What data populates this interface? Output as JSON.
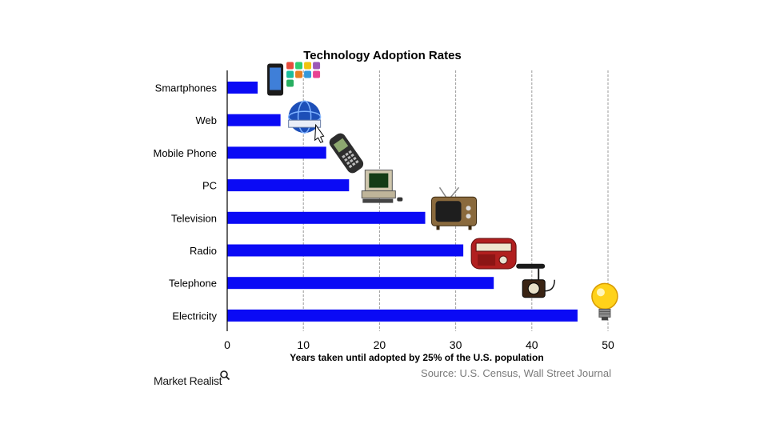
{
  "colors": {
    "bar": "#0a0af5",
    "grid": "#9a9a9a",
    "axis": "#000000",
    "source": "#7a7a7a"
  },
  "chart_data": {
    "type": "bar",
    "orientation": "horizontal",
    "title": "Technology Adoption Rates",
    "xlabel": "Years taken until adopted by 25% of the U.S. population",
    "ylabel": "",
    "categories": [
      "Smartphones",
      "Web",
      "Mobile Phone",
      "PC",
      "Television",
      "Radio",
      "Telephone",
      "Electricity"
    ],
    "values": [
      4,
      7,
      13,
      16,
      26,
      31,
      35,
      46
    ],
    "xlim": [
      0,
      50
    ],
    "xticks": [
      0,
      10,
      20,
      30,
      40,
      50
    ],
    "grid": "vertical dashed",
    "legend": "none"
  },
  "icons": [
    "smartphone-icon",
    "web-globe-icon",
    "mobile-phone-icon",
    "pc-icon",
    "television-icon",
    "radio-icon",
    "telephone-icon",
    "lightbulb-icon"
  ],
  "footer": {
    "source": "Source: U.S. Census, Wall Street Journal",
    "brand": "Market Realist"
  }
}
